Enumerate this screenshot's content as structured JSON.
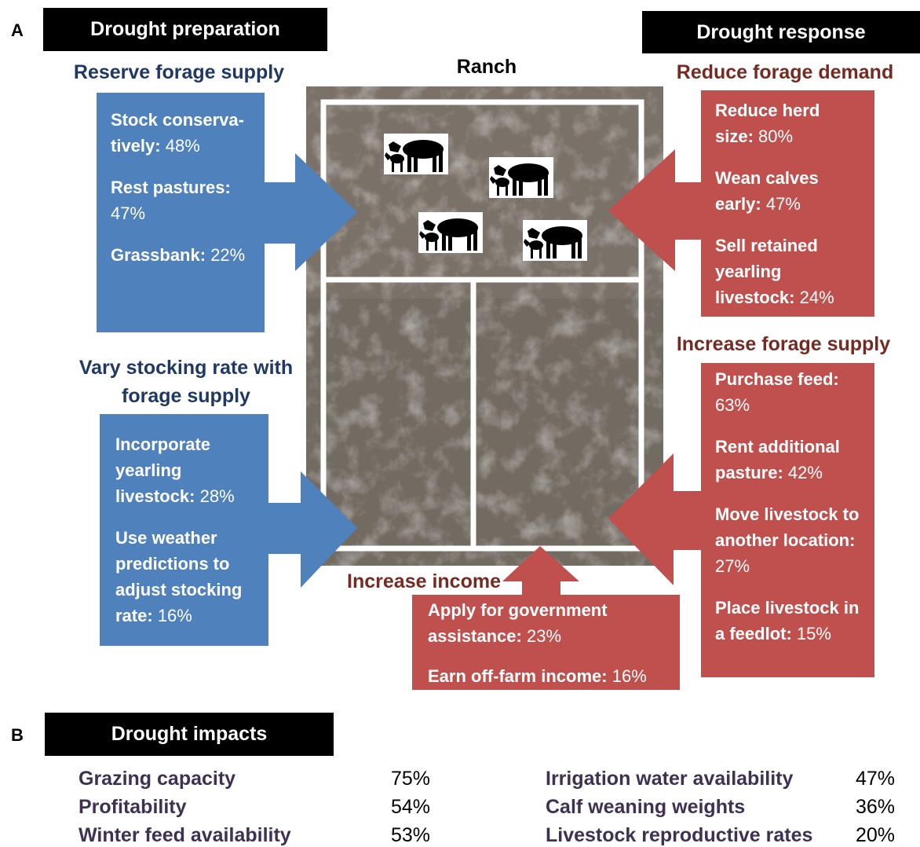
{
  "panel_labels": [
    "A",
    "B"
  ],
  "headers": {
    "preparation": "Drought preparation",
    "response": "Drought response"
  },
  "map_title": "Ranch",
  "groups": [
    {
      "title": "Reserve forage supply",
      "items": [
        {
          "label": "Stock conserva-tively:",
          "value": "48%"
        },
        {
          "label": "Rest pastures:",
          "value": "47%"
        },
        {
          "label": "Grassbank:",
          "value": "22%"
        }
      ]
    },
    {
      "title": "Vary stocking rate with forage supply",
      "items": [
        {
          "label": "Incorporate yearling livestock:",
          "value": "28%"
        },
        {
          "label": "Use weather predictions to adjust stocking rate:",
          "value": "16%"
        }
      ]
    },
    {
      "title": "Reduce forage demand",
      "items": [
        {
          "label": "Reduce herd size:",
          "value": "80%"
        },
        {
          "label": "Wean calves early:",
          "value": "47%"
        },
        {
          "label": "Sell retained yearling livestock:",
          "value": "24%"
        }
      ]
    },
    {
      "title": "Increase forage supply",
      "items": [
        {
          "label": "Purchase feed:",
          "value": "63%"
        },
        {
          "label": "Rent additional pasture:",
          "value": "42%"
        },
        {
          "label": "Move livestock to another location:",
          "value": "27%"
        },
        {
          "label": "Place livestock in a feedlot:",
          "value": "15%"
        }
      ]
    },
    {
      "title": "Increase income",
      "items": [
        {
          "label": "Apply for government assistance:",
          "value": "23%"
        },
        {
          "label": "Earn off-farm income:",
          "value": "16%"
        }
      ]
    }
  ],
  "impacts": {
    "title": "Drought impacts",
    "left": [
      {
        "label": "Grazing capacity",
        "value": "75%"
      },
      {
        "label": "Profitability",
        "value": "54%"
      },
      {
        "label": "Winter feed availability",
        "value": "53%"
      }
    ],
    "right": [
      {
        "label": "Irrigation water availability",
        "value": "47%"
      },
      {
        "label": "Calf weaning weights",
        "value": "36%"
      },
      {
        "label": "Livestock reproductive rates",
        "value": "20%"
      }
    ]
  }
}
